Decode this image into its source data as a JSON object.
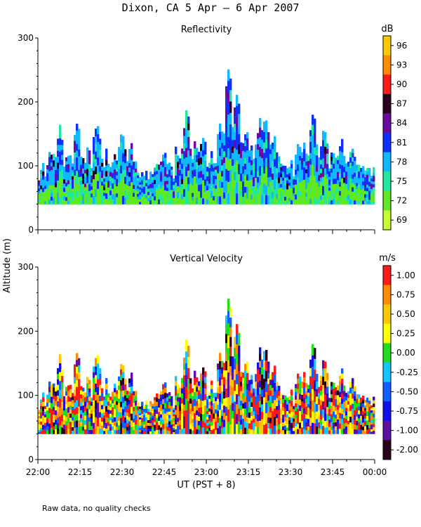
{
  "figure": {
    "title": "Dixon, CA  5 Apr —  6 Apr 2007",
    "ylabel": "Altitude (m)",
    "xlabel": "UT  (PST + 8)",
    "footnote": "Raw data, no quality checks"
  },
  "chart_data": [
    {
      "type": "heatmap",
      "title": "Reflectivity",
      "colorbar_unit": "dB",
      "colorbar_ticks": [
        "96",
        "93",
        "90",
        "87",
        "84",
        "81",
        "78",
        "75",
        "72",
        "69"
      ],
      "colorbar_colors": [
        "#ffc800",
        "#ff8c00",
        "#ff1a1a",
        "#2a001a",
        "#6a0aa0",
        "#1030ff",
        "#10b8ff",
        "#20e8a0",
        "#60e820",
        "#c8ff30"
      ],
      "xlim": [
        "22:00",
        "00:00"
      ],
      "x_ticks": [],
      "ylim": [
        0,
        300
      ],
      "y_ticks": [
        0,
        100,
        200,
        300
      ],
      "data_range_altitude_m": [
        40,
        260
      ],
      "peak_echo_altitude_m": 260,
      "peak_echo_time": "23:08"
    },
    {
      "type": "heatmap",
      "title": "Vertical Velocity",
      "colorbar_unit": "m/s",
      "colorbar_ticks": [
        "1.00",
        "0.75",
        "0.50",
        "0.25",
        "0.00",
        "-0.25",
        "-0.50",
        "-0.75",
        "-1.00",
        "-2.00"
      ],
      "colorbar_colors": [
        "#ff1a1a",
        "#ff8c00",
        "#ffc800",
        "#ffff00",
        "#20dd20",
        "#10c8ff",
        "#1060ff",
        "#1010ee",
        "#6010a0",
        "#2a001a"
      ],
      "xlim": [
        "22:00",
        "00:00"
      ],
      "x_ticks": [
        "22:00",
        "22:15",
        "22:30",
        "22:45",
        "23:00",
        "23:15",
        "23:30",
        "23:45",
        "00:00"
      ],
      "ylim": [
        0,
        300
      ],
      "y_ticks": [
        0,
        100,
        200,
        300
      ],
      "data_range_altitude_m": [
        40,
        260
      ],
      "peak_echo_altitude_m": 260,
      "peak_echo_time": "23:08"
    }
  ]
}
